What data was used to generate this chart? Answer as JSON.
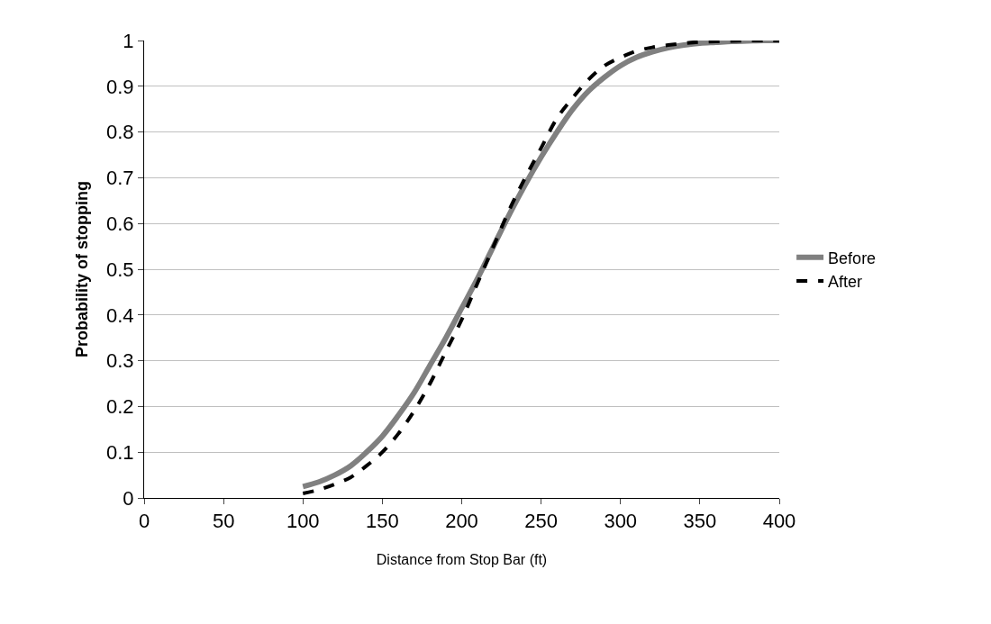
{
  "chart_data": {
    "type": "line",
    "xlabel": "Distance from Stop Bar (ft)",
    "ylabel": "Probability of stopping",
    "x": [
      100,
      110,
      120,
      130,
      140,
      150,
      160,
      170,
      180,
      190,
      200,
      210,
      220,
      230,
      240,
      250,
      260,
      270,
      280,
      290,
      300,
      310,
      320,
      330,
      340,
      350,
      360,
      370,
      380,
      390,
      400
    ],
    "series": [
      {
        "name": "Before",
        "color": "#808080",
        "line_style": "solid",
        "values": [
          0.025,
          0.035,
          0.05,
          0.07,
          0.1,
          0.135,
          0.18,
          0.23,
          0.29,
          0.35,
          0.415,
          0.48,
          0.55,
          0.62,
          0.685,
          0.745,
          0.8,
          0.85,
          0.89,
          0.92,
          0.945,
          0.963,
          0.975,
          0.984,
          0.99,
          0.994,
          0.996,
          0.998,
          0.999,
          1,
          1
        ]
      },
      {
        "name": "After",
        "color": "#000000",
        "line_style": "dashed",
        "values": [
          0.01,
          0.018,
          0.03,
          0.045,
          0.07,
          0.1,
          0.14,
          0.19,
          0.25,
          0.32,
          0.39,
          0.47,
          0.55,
          0.63,
          0.7,
          0.765,
          0.83,
          0.875,
          0.915,
          0.945,
          0.963,
          0.977,
          0.985,
          0.99,
          0.994,
          0.997,
          0.998,
          0.999,
          1,
          1,
          1
        ]
      }
    ],
    "xlim": [
      0,
      400
    ],
    "xticks": [
      0,
      50,
      100,
      150,
      200,
      250,
      300,
      350,
      400
    ],
    "ylim": [
      0,
      1
    ],
    "yticks": [
      0,
      0.1,
      0.2,
      0.3,
      0.4,
      0.5,
      0.6,
      0.7,
      0.8,
      0.9,
      1
    ],
    "grid": "y",
    "legend": "right",
    "marker": "none"
  }
}
